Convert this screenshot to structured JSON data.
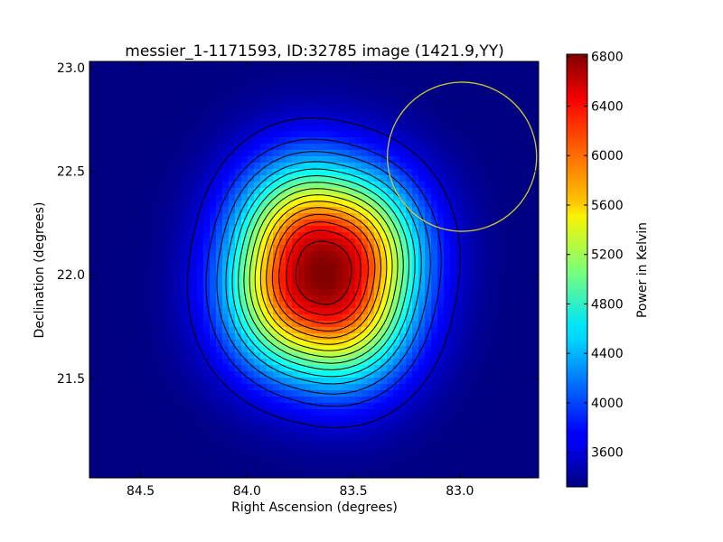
{
  "chart_data": {
    "type": "heatmap",
    "title": "messier_1-1171593, ID:32785 image (1421.9,YY)",
    "xlabel": "Right Ascension (degrees)",
    "ylabel": "Declination (degrees)",
    "colorbar_label": "Power in Kelvin",
    "xlim": [
      84.74,
      82.63
    ],
    "ylim": [
      21.02,
      23.03
    ],
    "x_ticks": [
      84.5,
      84.0,
      83.5,
      83.0
    ],
    "x_tick_labels": [
      "84.5",
      "84.0",
      "83.5",
      "83.0"
    ],
    "y_ticks": [
      21.5,
      22.0,
      22.5,
      23.0
    ],
    "y_tick_labels": [
      "21.5",
      "22.0",
      "22.5",
      "23.0"
    ],
    "colorbar_range": [
      3320,
      6820
    ],
    "colorbar_ticks": [
      3600,
      4000,
      4400,
      4800,
      5200,
      5600,
      6000,
      6400,
      6800
    ],
    "colorbar_tick_labels": [
      "3600",
      "4000",
      "4400",
      "4800",
      "5200",
      "5600",
      "6000",
      "6400",
      "6800"
    ],
    "colormap": "jet",
    "peak": {
      "ra": 83.64,
      "dec": 22.01,
      "value": 6820
    },
    "background_value": 3320,
    "contour_levels": [
      3600,
      3900,
      4150,
      4400,
      4600,
      4800,
      5000,
      5200,
      5400,
      5600,
      5800,
      6000,
      6200,
      6400,
      6600
    ],
    "beam_circle": {
      "ra": 82.99,
      "dec": 22.57,
      "radius_deg": 0.36,
      "color": "#c8c832"
    },
    "grid": false,
    "legend": "colorbar-right"
  }
}
